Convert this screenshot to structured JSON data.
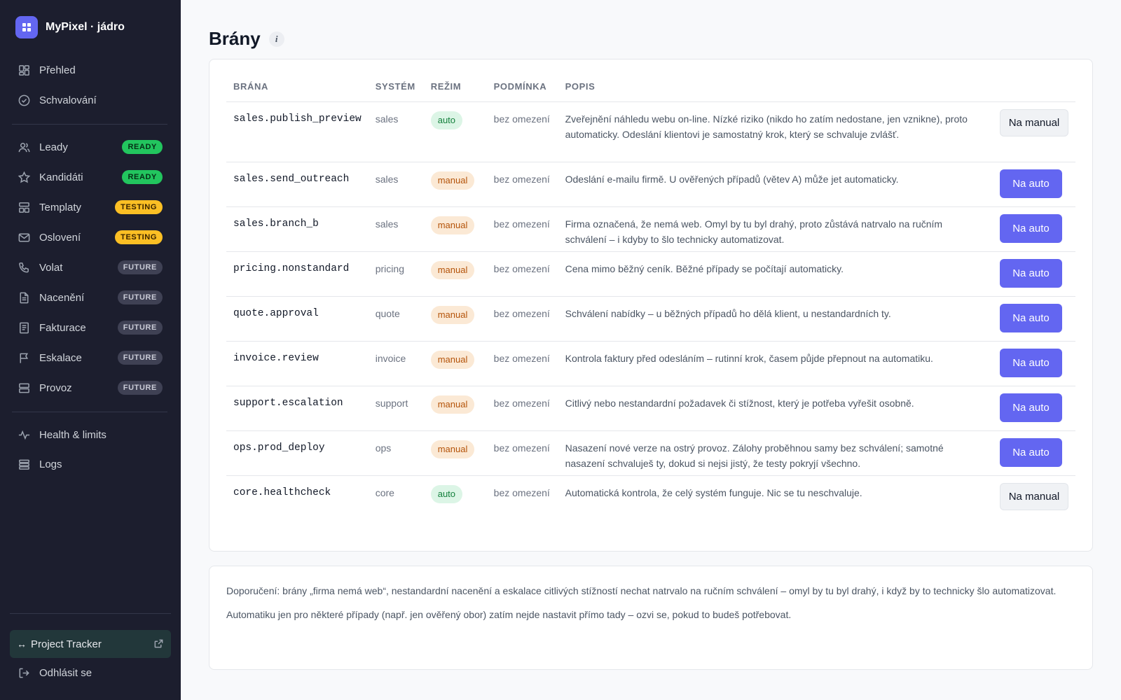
{
  "brand": {
    "name": "MyPixel · jádro"
  },
  "sidebar": {
    "items": [
      {
        "label": "Přehled",
        "icon": "grid-icon"
      },
      {
        "label": "Schvalování",
        "icon": "check-circle-icon"
      },
      {
        "label": "Leady",
        "icon": "users-icon",
        "badge": "READY"
      },
      {
        "label": "Kandidáti",
        "icon": "star-icon",
        "badge": "READY"
      },
      {
        "label": "Templaty",
        "icon": "layout-icon",
        "badge": "TESTING"
      },
      {
        "label": "Oslovení",
        "icon": "mail-icon",
        "badge": "TESTING"
      },
      {
        "label": "Volat",
        "icon": "phone-icon",
        "badge": "FUTURE"
      },
      {
        "label": "Nacenění",
        "icon": "document-icon",
        "badge": "FUTURE"
      },
      {
        "label": "Fakturace",
        "icon": "invoice-icon",
        "badge": "FUTURE"
      },
      {
        "label": "Eskalace",
        "icon": "flag-icon",
        "badge": "FUTURE"
      },
      {
        "label": "Provoz",
        "icon": "server-icon",
        "badge": "FUTURE"
      },
      {
        "label": "Health & limits",
        "icon": "activity-icon"
      },
      {
        "label": "Logs",
        "icon": "list-icon"
      }
    ],
    "tracker": {
      "arrow": "↔",
      "label": "Project Tracker"
    },
    "logout": "Odhlásit se"
  },
  "page": {
    "title": "Brány",
    "info": "i"
  },
  "table": {
    "headers": [
      "BRÁNA",
      "SYSTÉM",
      "REŽIM",
      "PODMÍNKA",
      "POPIS"
    ],
    "rows": [
      {
        "gate": "sales.publish_preview",
        "system": "sales",
        "mode": "auto",
        "condition": "bez omezení",
        "desc": "Zveřejnění náhledu webu on-line. Nízké riziko (nikdo ho zatím nedostane, jen vznikne), proto automaticky. Odeslání klientovi je samostatný krok, který se schvaluje zvlášť.",
        "action": "Na manual"
      },
      {
        "gate": "sales.send_outreach",
        "system": "sales",
        "mode": "manual",
        "condition": "bez omezení",
        "desc": "Odeslání e-mailu firmě. U ověřených případů (větev A) může jet automaticky.",
        "action": "Na auto"
      },
      {
        "gate": "sales.branch_b",
        "system": "sales",
        "mode": "manual",
        "condition": "bez omezení",
        "desc": "Firma označená, že nemá web. Omyl by tu byl drahý, proto zůstává natrvalo na ručním schválení – i kdyby to šlo technicky automatizovat.",
        "action": "Na auto"
      },
      {
        "gate": "pricing.nonstandard",
        "system": "pricing",
        "mode": "manual",
        "condition": "bez omezení",
        "desc": "Cena mimo běžný ceník. Běžné případy se počítají automaticky.",
        "action": "Na auto"
      },
      {
        "gate": "quote.approval",
        "system": "quote",
        "mode": "manual",
        "condition": "bez omezení",
        "desc": "Schválení nabídky – u běžných případů ho dělá klient, u nestandardních ty.",
        "action": "Na auto"
      },
      {
        "gate": "invoice.review",
        "system": "invoice",
        "mode": "manual",
        "condition": "bez omezení",
        "desc": "Kontrola faktury před odesláním – rutinní krok, časem půjde přepnout na automatiku.",
        "action": "Na auto"
      },
      {
        "gate": "support.escalation",
        "system": "support",
        "mode": "manual",
        "condition": "bez omezení",
        "desc": "Citlivý nebo nestandardní požadavek či stížnost, který je potřeba vyřešit osobně.",
        "action": "Na auto"
      },
      {
        "gate": "ops.prod_deploy",
        "system": "ops",
        "mode": "manual",
        "condition": "bez omezení",
        "desc": "Nasazení nové verze na ostrý provoz. Zálohy proběhnou samy bez schválení; samotné nasazení schvaluješ ty, dokud si nejsi jistý, že testy pokryjí všechno.",
        "action": "Na auto"
      },
      {
        "gate": "core.healthcheck",
        "system": "core",
        "mode": "auto",
        "condition": "bez omezení",
        "desc": "Automatická kontrola, že celý systém funguje. Nic se tu neschvaluje.",
        "action": "Na manual"
      }
    ]
  },
  "notes": [
    "Doporučení: brány „firma nemá web“, nestandardní nacenění a eskalace citlivých stížností nechat natrvalo na ručním schválení – omyl by tu byl drahý, i když by to technicky šlo automatizovat.",
    "Automatiku jen pro některé případy (např. jen ověřený obor) zatím nejde nastavit přímo tady – ozvi se, pokud to budeš potřebovat."
  ],
  "colors": {
    "sidebar_bg": "#1c1e2e",
    "accent": "#6366f1",
    "ready": "#22c55e",
    "testing": "#fbbf24"
  }
}
